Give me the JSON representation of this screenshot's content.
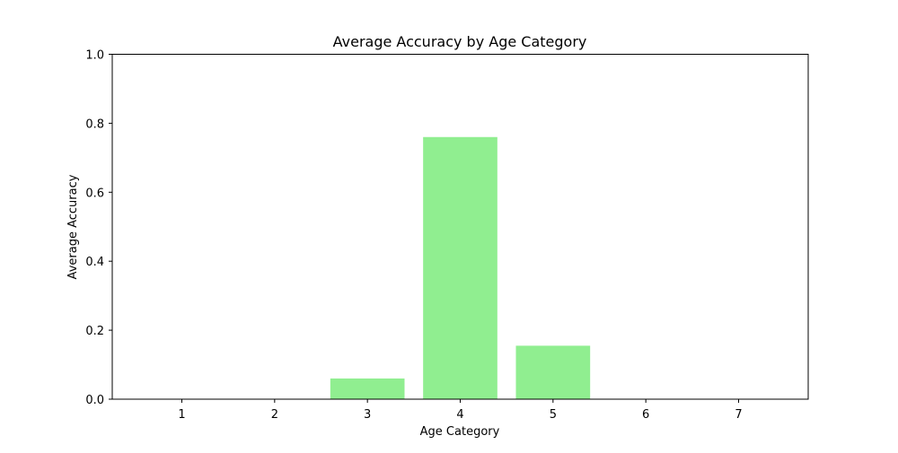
{
  "chart_data": {
    "type": "bar",
    "title": "Average Accuracy by Age Category",
    "xlabel": "Age Category",
    "ylabel": "Average Accuracy",
    "categories": [
      "1",
      "2",
      "3",
      "4",
      "5",
      "6",
      "7"
    ],
    "values": [
      0.0,
      0.0,
      0.06,
      0.76,
      0.155,
      0.0,
      0.0
    ],
    "ylim": [
      0,
      1.0
    ],
    "yticks": [
      0.0,
      0.2,
      0.4,
      0.6,
      0.8,
      1.0
    ],
    "ytick_labels": [
      "0.0",
      "0.2",
      "0.4",
      "0.6",
      "0.8",
      "1.0"
    ],
    "bar_color": "#90ee90",
    "grid": false,
    "legend": "none"
  }
}
